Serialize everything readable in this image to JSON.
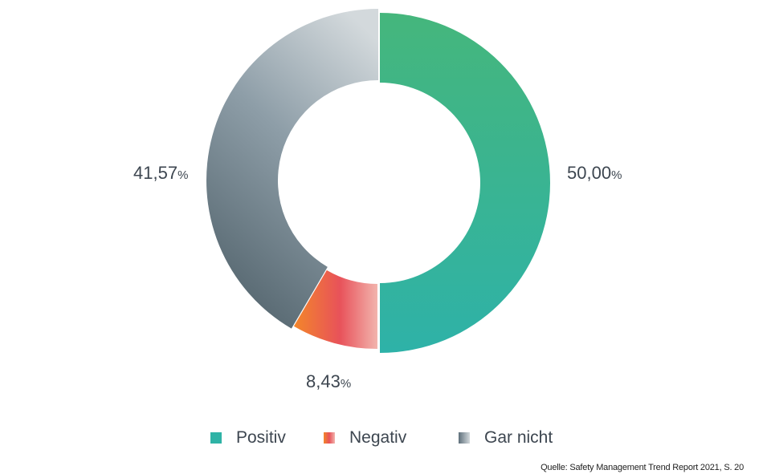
{
  "chart_data": {
    "type": "pie",
    "variant": "donut",
    "categories": [
      "Positiv",
      "Negativ",
      "Gar nicht"
    ],
    "values": [
      50.0,
      8.43,
      41.57
    ],
    "value_labels": [
      "50,00",
      "8,43",
      "41,57"
    ],
    "unit": "%",
    "colors": {
      "Positiv": [
        "#2fb3a6",
        "#43b47f"
      ],
      "Negativ": [
        "#f07f2a",
        "#e8525a",
        "#f0a6a0"
      ],
      "Gar nicht": [
        "#5e6f7b",
        "#cfd6da"
      ]
    },
    "legend_position": "bottom"
  },
  "legend": {
    "items": [
      {
        "label": "Positiv"
      },
      {
        "label": "Negativ"
      },
      {
        "label": "Gar nicht"
      }
    ]
  },
  "source": "Quelle: Safety Management Trend Report 2021, S. 20"
}
